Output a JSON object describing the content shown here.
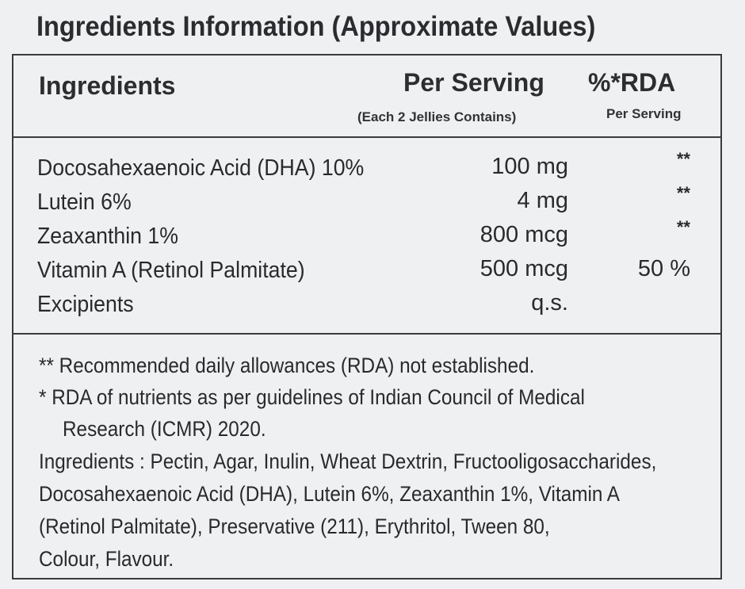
{
  "title": "Ingredients Information (Approximate Values)",
  "table": {
    "header": {
      "ingredients": "Ingredients",
      "per_serving": "Per Serving",
      "per_serving_sub": "(Each 2 Jellies Contains)",
      "rda": "%*RDA",
      "rda_sub": "Per Serving"
    },
    "rows": [
      {
        "name": "Docosahexaenoic Acid (DHA) 10%",
        "amount": "100 mg",
        "rda": "**"
      },
      {
        "name": "Lutein 6%",
        "amount": "4 mg",
        "rda": "**"
      },
      {
        "name": "Zeaxanthin 1%",
        "amount": "800 mcg",
        "rda": "**"
      },
      {
        "name": "Vitamin A (Retinol Palmitate)",
        "amount": "500 mcg",
        "rda": "50 %"
      },
      {
        "name": "Excipients",
        "amount": "q.s.",
        "rda": ""
      }
    ]
  },
  "notes": {
    "rda_not_established": "** Recommended daily allowances (RDA) not established.",
    "rda_guideline_line1": "* RDA of nutrients as per guidelines of Indian Council of Medical",
    "rda_guideline_line2": "Research (ICMR) 2020.",
    "ingredients_lines": [
      "Ingredients : Pectin, Agar, Inulin, Wheat Dextrin, Fructooligosaccharides,",
      "Docosahexaenoic Acid (DHA), Lutein 6%, Zeaxanthin 1%, Vitamin A",
      "(Retinol Palmitate), Preservative (211), Erythritol, Tween 80,",
      "Colour, Flavour."
    ]
  }
}
